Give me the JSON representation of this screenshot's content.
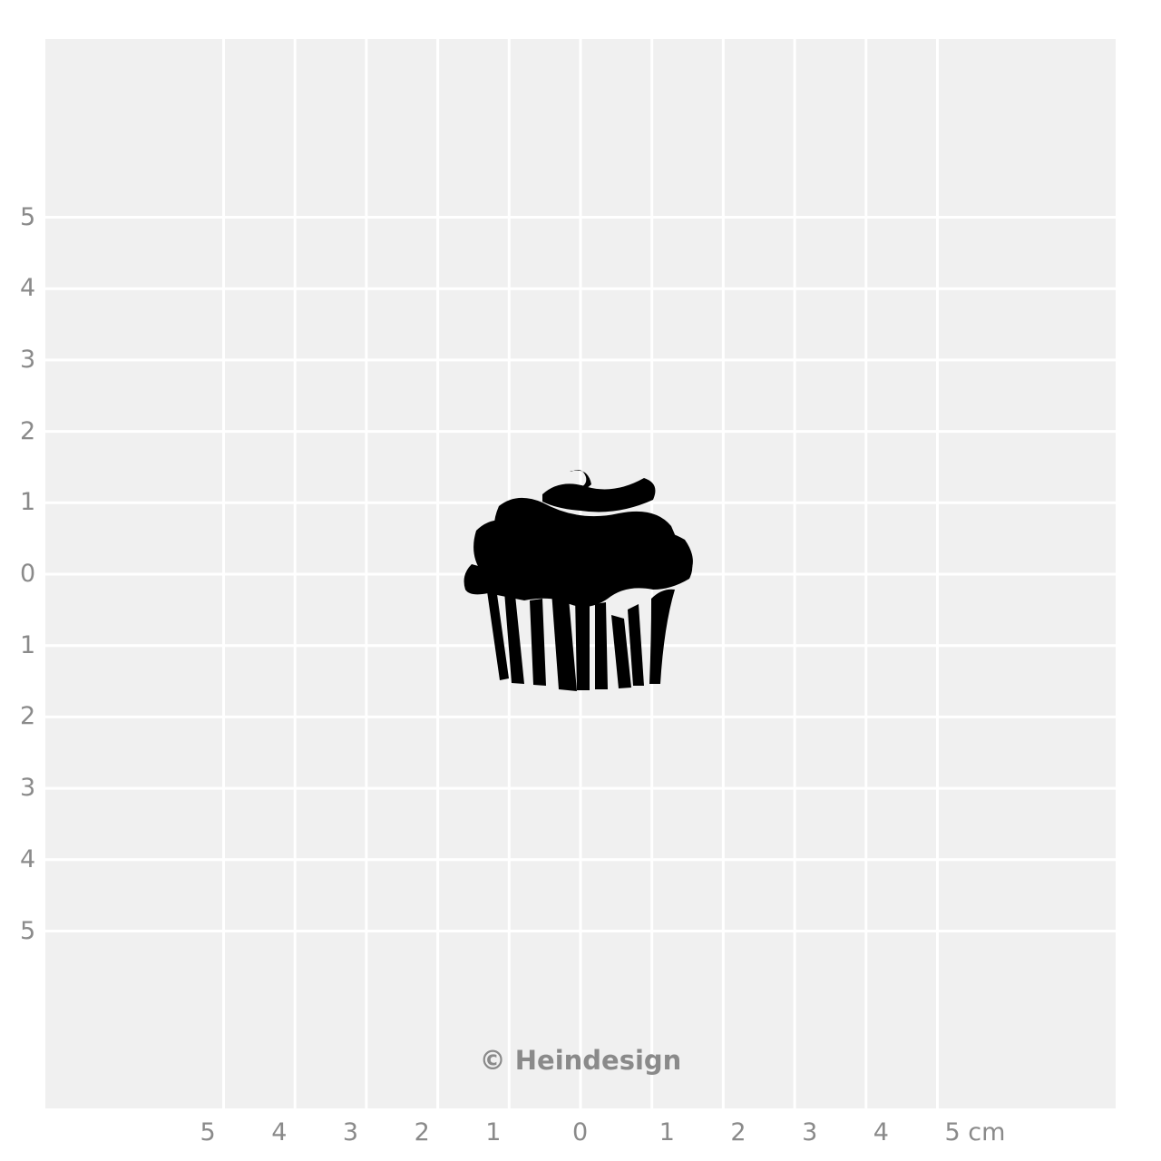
{
  "colors": {
    "background": "#f0f0f0",
    "grid_line": "#ffffff",
    "label": "#8a8a8a",
    "motif": "#000000"
  },
  "motif": {
    "icon": "cupcake-icon"
  },
  "y_axis_labels": [
    "5",
    "4",
    "3",
    "2",
    "1",
    "0",
    "1",
    "2",
    "3",
    "4",
    "5"
  ],
  "x_axis_labels": [
    "5",
    "4",
    "3",
    "2",
    "1",
    "0",
    "1",
    "2",
    "3",
    "4",
    "5 cm"
  ],
  "credit": "© Heindesign"
}
